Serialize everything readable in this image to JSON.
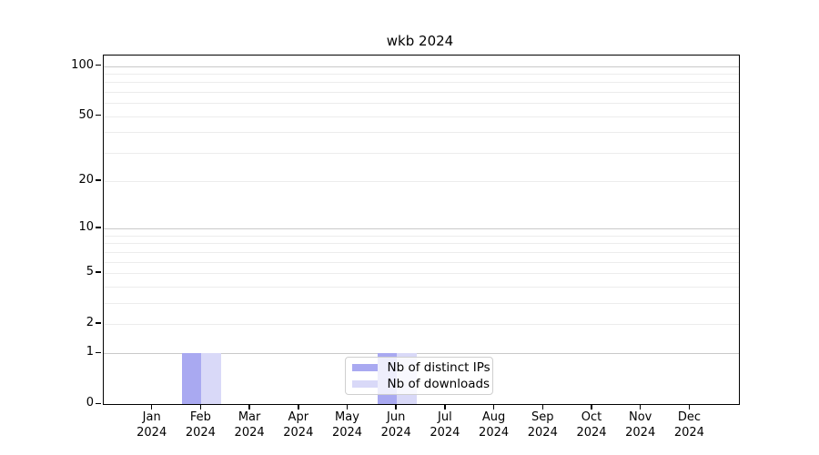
{
  "chart_data": {
    "type": "bar",
    "title": "wkb 2024",
    "categories": [
      "Jan",
      "Feb",
      "Mar",
      "Apr",
      "May",
      "Jun",
      "Jul",
      "Aug",
      "Sep",
      "Oct",
      "Nov",
      "Dec"
    ],
    "x_year": "2024",
    "series": [
      {
        "name": "Nb of distinct IPs",
        "color": "#a9a9f1",
        "values": [
          0,
          1,
          0,
          0,
          0,
          1,
          0,
          0,
          0,
          0,
          0,
          0
        ]
      },
      {
        "name": "Nb of downloads",
        "color": "#d9d9f8",
        "values": [
          0,
          1,
          0,
          0,
          0,
          1,
          0,
          0,
          0,
          0,
          0,
          0
        ]
      }
    ],
    "yscale": "log10(1+v)",
    "ylim": [
      0,
      116
    ],
    "yticks": [
      0,
      1,
      2,
      5,
      10,
      20,
      50,
      100
    ],
    "minor_yticks": [
      3,
      4,
      6,
      7,
      8,
      9,
      30,
      40,
      60,
      70,
      80,
      90
    ],
    "decade_ticks": [
      1,
      10,
      100
    ],
    "grid": true,
    "legend_position": "inside lower center",
    "axis_color": "#000000",
    "grid_major_color": "#c9c9c9",
    "grid_minor_color": "#ececec"
  }
}
